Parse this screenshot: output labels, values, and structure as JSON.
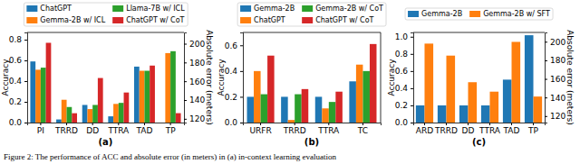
{
  "chart_data": [
    {
      "type": "bar",
      "title": "(a)",
      "ylabel": "Accuracy",
      "y2label": "Absolute error (meters)",
      "categories": [
        "PI",
        "TRRD",
        "DD",
        "TTRA",
        "TAD",
        "TP"
      ],
      "ylim": [
        0,
        0.87
      ],
      "yticks": [
        {
          "value": 0,
          "label": "0.0"
        },
        {
          "value": 0.2,
          "label": "0.2"
        },
        {
          "value": 0.4,
          "label": "0.4"
        },
        {
          "value": 0.6,
          "label": "0.6"
        },
        {
          "value": 0.8,
          "label": "0.8"
        }
      ],
      "y2lim": [
        116,
        212
      ],
      "y2ticks": [
        120,
        140,
        160,
        180,
        200
      ],
      "series": [
        {
          "name": "ChatGPT",
          "color": "#1f77b4",
          "values": [
            0.59,
            0.03,
            0.17,
            0.06,
            0.54,
            null
          ]
        },
        {
          "name": "Gemma-2B w/ ICL",
          "color": "#ff7f0e",
          "values": [
            0.51,
            0.22,
            0.13,
            0.18,
            0.5,
            null
          ]
        },
        {
          "name": "Llama-7B w/ ICL",
          "color": "#2ca02c",
          "values": [
            0.53,
            0.15,
            0.17,
            0.19,
            0.5,
            null
          ]
        },
        {
          "name": "ChatGPT w/ CoT",
          "color": "#d62728",
          "values": [
            0.77,
            0.09,
            0.43,
            0.29,
            0.55,
            null
          ]
        },
        {
          "name": "Gemma-2B w/ ICL",
          "color": "#ff7f0e",
          "axis": "y2",
          "values": [
            null,
            null,
            null,
            null,
            null,
            190
          ]
        },
        {
          "name": "Llama-7B w/ ICL",
          "color": "#2ca02c",
          "axis": "y2",
          "values": [
            null,
            null,
            null,
            null,
            null,
            192
          ]
        },
        {
          "name": "ChatGPT w/ CoT",
          "color": "#d62728",
          "axis": "y2",
          "values": [
            null,
            null,
            null,
            null,
            null,
            126
          ]
        }
      ]
    },
    {
      "type": "bar",
      "title": "(b)",
      "ylabel": "Accuracy",
      "categories": [
        "URFR",
        "TRRD",
        "TTRA",
        "TC"
      ],
      "ylim": [
        0,
        0.7
      ],
      "yticks": [
        {
          "value": 0,
          "label": "0.0"
        },
        {
          "value": 0.2,
          "label": "0.2"
        },
        {
          "value": 0.4,
          "label": "0.4"
        },
        {
          "value": 0.6,
          "label": "0.6"
        }
      ],
      "series": [
        {
          "name": "Gemma-2B",
          "color": "#1f77b4",
          "values": [
            0.2,
            0.2,
            0.2,
            0.32
          ]
        },
        {
          "name": "ChatGPT",
          "color": "#ff7f0e",
          "values": [
            0.4,
            0.02,
            0.11,
            0.45
          ]
        },
        {
          "name": "Gemma-2B w/ CoT",
          "color": "#2ca02c",
          "values": [
            0.22,
            0.22,
            0.16,
            0.4
          ]
        },
        {
          "name": "ChatGPT w/ CoT",
          "color": "#d62728",
          "values": [
            0.52,
            0.26,
            0.24,
            0.61
          ]
        }
      ]
    },
    {
      "type": "bar",
      "title": "(c)",
      "ylabel": "Accuracy",
      "y2label": "Absolute error (meters)",
      "categories": [
        "ARD",
        "TRRD",
        "DD",
        "TTRA",
        "TAD",
        "TP"
      ],
      "ylim": [
        0,
        1.05
      ],
      "yticks": [
        {
          "value": 0,
          "label": "0.0"
        },
        {
          "value": 0.2,
          "label": "0.2"
        },
        {
          "value": 0.4,
          "label": "0.4"
        },
        {
          "value": 0.6,
          "label": "0.6"
        },
        {
          "value": 0.8,
          "label": "0.8"
        },
        {
          "value": 1,
          "label": "1.0"
        }
      ],
      "y2lim": [
        113,
        210
      ],
      "y2ticks": [
        120,
        140,
        160,
        180,
        200
      ],
      "series": [
        {
          "name": "Gemma-2B",
          "color": "#1f77b4",
          "values": [
            0.2,
            0.2,
            0.2,
            0.2,
            0.5,
            null
          ]
        },
        {
          "name": "Gemma-2B w/ SFT",
          "color": "#ff7f0e",
          "values": [
            0.92,
            0.78,
            0.47,
            0.36,
            0.94,
            null
          ]
        },
        {
          "name": "Gemma-2B",
          "color": "#1f77b4",
          "axis": "y2",
          "values": [
            null,
            null,
            null,
            null,
            null,
            207
          ]
        },
        {
          "name": "Gemma-2B w/ SFT",
          "color": "#ff7f0e",
          "axis": "y2",
          "values": [
            null,
            null,
            null,
            null,
            null,
            141
          ]
        }
      ]
    }
  ],
  "caption": "Figure 2: The performance of ACC and absolute error (in meters) in (a) in-context learning evaluation"
}
